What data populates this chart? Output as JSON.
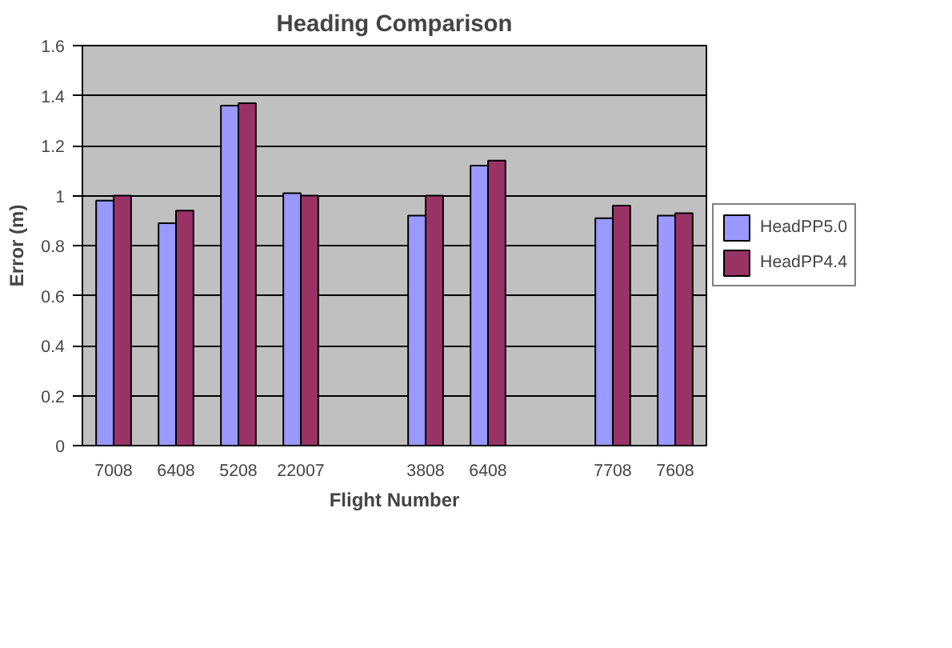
{
  "chart_data": {
    "type": "bar",
    "title": "Heading Comparison",
    "xlabel": "Flight Number",
    "ylabel": "Error (m)",
    "categories": [
      "7008",
      "6408",
      "5208",
      "22007",
      null,
      "3808",
      "6408",
      null,
      "7708",
      "7608"
    ],
    "series": [
      {
        "name": "HeadPP5.0",
        "color": "#9999ff",
        "values": [
          0.98,
          0.89,
          1.36,
          1.01,
          null,
          0.92,
          1.12,
          null,
          0.91,
          0.92
        ]
      },
      {
        "name": "HeadPP4.4",
        "color": "#993366",
        "values": [
          1.0,
          0.94,
          1.37,
          1.0,
          null,
          1.0,
          1.14,
          null,
          0.96,
          0.93
        ]
      }
    ],
    "ylim": [
      0,
      1.6
    ],
    "yticks": [
      0,
      0.2,
      0.4,
      0.6,
      0.8,
      1,
      1.2,
      1.4,
      1.6
    ],
    "grid": "y",
    "legend": "right"
  }
}
